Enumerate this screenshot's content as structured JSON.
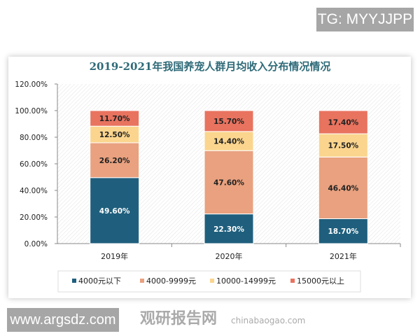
{
  "watermark_top": "TG: MYYJJPP",
  "watermark_bottom": "www.argsdz.com",
  "logo_watermark": "观研报告网",
  "logo_url_text": "chinabaogao.com",
  "chart_data": {
    "type": "bar",
    "stacked": true,
    "title": "2019-2021年我国养宠人群月均收入分布情况情况",
    "categories": [
      "2019年",
      "2020年",
      "2021年"
    ],
    "ylim": [
      0,
      120
    ],
    "yticks": [
      "0.00%",
      "20.00%",
      "40.00%",
      "60.00%",
      "80.00%",
      "100.00%",
      "120.00%"
    ],
    "legend_position": "bottom",
    "series": [
      {
        "name": "4000元以下",
        "values": [
          49.6,
          22.3,
          18.7
        ],
        "labels": [
          "49.60%",
          "22.30%",
          "18.70%"
        ],
        "color": "#1f5f7d"
      },
      {
        "name": "4000-9999元",
        "values": [
          26.2,
          47.6,
          46.4
        ],
        "labels": [
          "26.20%",
          "47.60%",
          "46.40%"
        ],
        "color": "#e9a17f"
      },
      {
        "name": "10000-14999元",
        "values": [
          12.5,
          14.4,
          17.5
        ],
        "labels": [
          "12.50%",
          "14.40%",
          "17.50%"
        ],
        "color": "#fbd58e"
      },
      {
        "name": "15000元以上",
        "values": [
          11.7,
          15.7,
          17.4
        ],
        "labels": [
          "11.70%",
          "15.70%",
          "17.40%"
        ],
        "color": "#e8735f"
      }
    ]
  }
}
